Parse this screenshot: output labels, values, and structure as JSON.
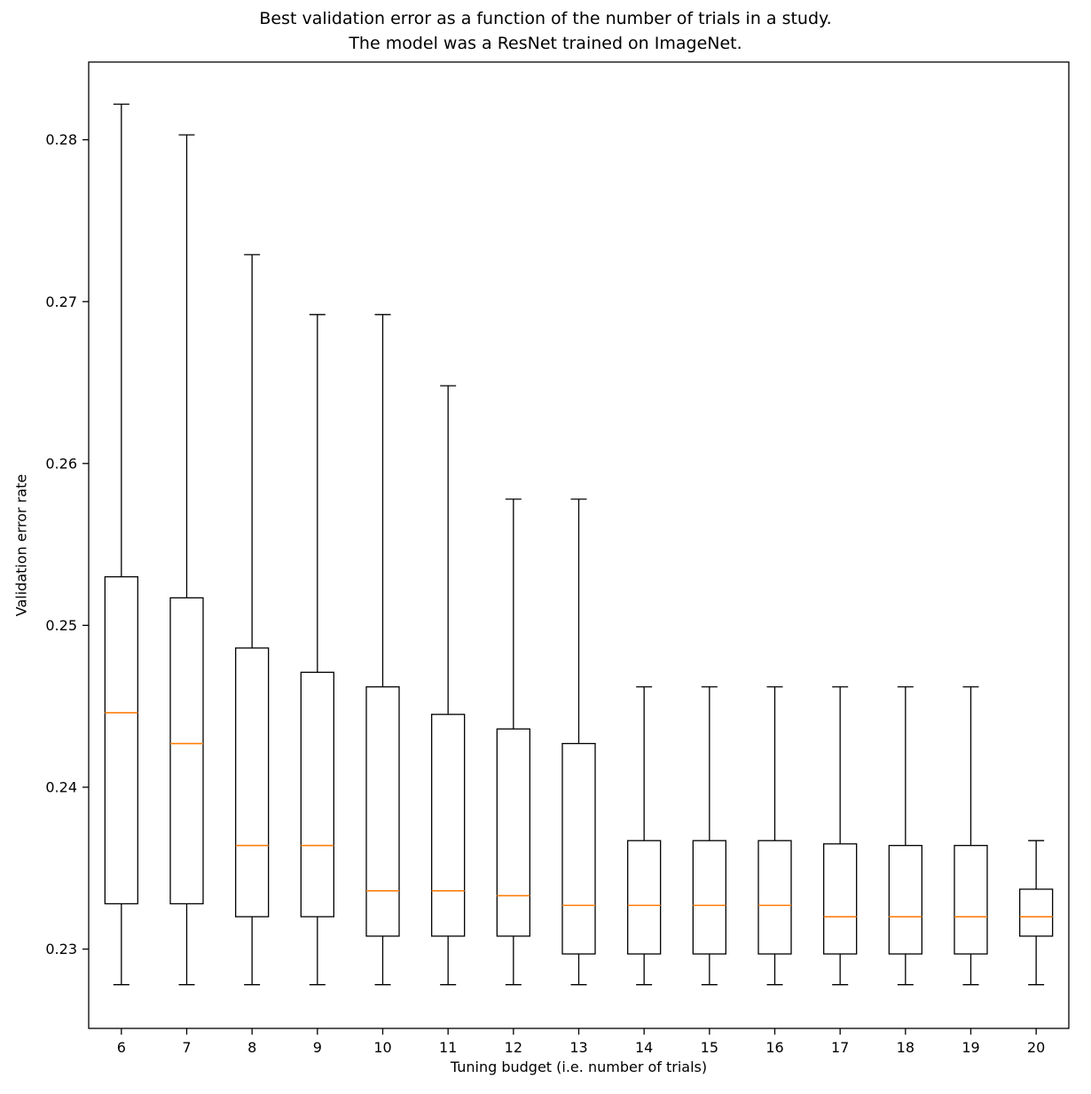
{
  "chart_data": {
    "type": "boxplot",
    "title": "Best validation error as a function of the number of trials in a study.\nThe model was a ResNet trained on ImageNet.",
    "xlabel": "Tuning budget (i.e. number of trials)",
    "ylabel": "Validation error rate",
    "categories": [
      "6",
      "7",
      "8",
      "9",
      "10",
      "11",
      "12",
      "13",
      "14",
      "15",
      "16",
      "17",
      "18",
      "19",
      "20"
    ],
    "yticks": [
      0.23,
      0.24,
      0.25,
      0.26,
      0.27,
      0.28
    ],
    "ylim": [
      0.2251,
      0.2848
    ],
    "grid": false,
    "legend": "none",
    "median_color": "#ff7f0e",
    "box_color": "#000000",
    "boxes": [
      {
        "category": "6",
        "whisker_low": 0.2278,
        "q1": 0.2328,
        "median": 0.2446,
        "q3": 0.253,
        "whisker_high": 0.2822
      },
      {
        "category": "7",
        "whisker_low": 0.2278,
        "q1": 0.2328,
        "median": 0.2427,
        "q3": 0.2517,
        "whisker_high": 0.2803
      },
      {
        "category": "8",
        "whisker_low": 0.2278,
        "q1": 0.232,
        "median": 0.2364,
        "q3": 0.2486,
        "whisker_high": 0.2729
      },
      {
        "category": "9",
        "whisker_low": 0.2278,
        "q1": 0.232,
        "median": 0.2364,
        "q3": 0.2471,
        "whisker_high": 0.2692
      },
      {
        "category": "10",
        "whisker_low": 0.2278,
        "q1": 0.2308,
        "median": 0.2336,
        "q3": 0.2462,
        "whisker_high": 0.2692
      },
      {
        "category": "11",
        "whisker_low": 0.2278,
        "q1": 0.2308,
        "median": 0.2336,
        "q3": 0.2445,
        "whisker_high": 0.2648
      },
      {
        "category": "12",
        "whisker_low": 0.2278,
        "q1": 0.2308,
        "median": 0.2333,
        "q3": 0.2436,
        "whisker_high": 0.2578
      },
      {
        "category": "13",
        "whisker_low": 0.2278,
        "q1": 0.2297,
        "median": 0.2327,
        "q3": 0.2427,
        "whisker_high": 0.2578
      },
      {
        "category": "14",
        "whisker_low": 0.2278,
        "q1": 0.2297,
        "median": 0.2327,
        "q3": 0.2367,
        "whisker_high": 0.2462
      },
      {
        "category": "15",
        "whisker_low": 0.2278,
        "q1": 0.2297,
        "median": 0.2327,
        "q3": 0.2367,
        "whisker_high": 0.2462
      },
      {
        "category": "16",
        "whisker_low": 0.2278,
        "q1": 0.2297,
        "median": 0.2327,
        "q3": 0.2367,
        "whisker_high": 0.2462
      },
      {
        "category": "17",
        "whisker_low": 0.2278,
        "q1": 0.2297,
        "median": 0.232,
        "q3": 0.2365,
        "whisker_high": 0.2462
      },
      {
        "category": "18",
        "whisker_low": 0.2278,
        "q1": 0.2297,
        "median": 0.232,
        "q3": 0.2364,
        "whisker_high": 0.2462
      },
      {
        "category": "19",
        "whisker_low": 0.2278,
        "q1": 0.2297,
        "median": 0.232,
        "q3": 0.2364,
        "whisker_high": 0.2462
      },
      {
        "category": "20",
        "whisker_low": 0.2278,
        "q1": 0.2308,
        "median": 0.232,
        "q3": 0.2337,
        "whisker_high": 0.2367
      }
    ]
  }
}
